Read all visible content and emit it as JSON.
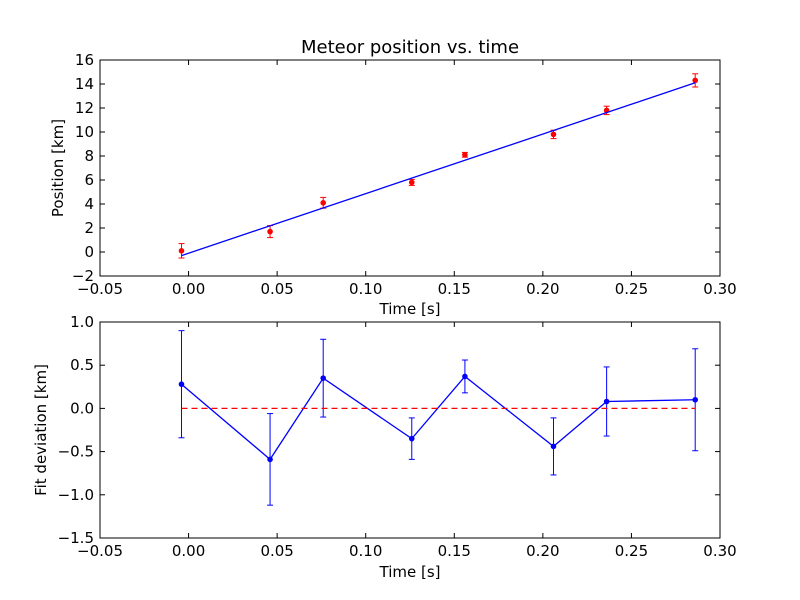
{
  "chart_data": [
    {
      "type": "scatter",
      "title": "Meteor position vs. time",
      "xlabel": "Time [s]",
      "ylabel": "Position [km]",
      "xlim": [
        -0.05,
        0.3
      ],
      "ylim": [
        -2,
        16
      ],
      "xticks": [
        "−0.05",
        "0.00",
        "0.05",
        "0.10",
        "0.15",
        "0.20",
        "0.25",
        "0.30"
      ],
      "xtick_values": [
        -0.05,
        0.0,
        0.05,
        0.1,
        0.15,
        0.2,
        0.25,
        0.3
      ],
      "yticks": [
        "−2",
        "0",
        "2",
        "4",
        "6",
        "8",
        "10",
        "12",
        "14",
        "16"
      ],
      "ytick_values": [
        -2,
        0,
        2,
        4,
        6,
        8,
        10,
        12,
        14,
        16
      ],
      "grid": false,
      "series": [
        {
          "kind": "errorbar",
          "color": "#ff0000",
          "x": [
            -0.004,
            0.046,
            0.076,
            0.126,
            0.156,
            0.206,
            0.236,
            0.286
          ],
          "y": [
            0.1,
            1.7,
            4.1,
            5.8,
            8.1,
            9.8,
            11.8,
            14.3
          ],
          "yerr": [
            0.6,
            0.5,
            0.45,
            0.25,
            0.2,
            0.35,
            0.35,
            0.55
          ]
        },
        {
          "kind": "line",
          "color": "#0000ff",
          "x": [
            -0.004,
            0.286
          ],
          "y": [
            -0.3,
            14.1
          ]
        }
      ]
    },
    {
      "type": "line",
      "title": "",
      "xlabel": "Time [s]",
      "ylabel": "Fit deviation [km]",
      "xlim": [
        -0.05,
        0.3
      ],
      "ylim": [
        -1.5,
        1.0
      ],
      "xticks": [
        "−0.05",
        "0.00",
        "0.05",
        "0.10",
        "0.15",
        "0.20",
        "0.25",
        "0.30"
      ],
      "xtick_values": [
        -0.05,
        0.0,
        0.05,
        0.1,
        0.15,
        0.2,
        0.25,
        0.3
      ],
      "yticks": [
        "−1.5",
        "−1.0",
        "−0.5",
        "0.0",
        "0.5",
        "1.0"
      ],
      "ytick_values": [
        -1.5,
        -1.0,
        -0.5,
        0.0,
        0.5,
        1.0
      ],
      "grid": false,
      "series": [
        {
          "kind": "errorbar-line",
          "color": "#0000ff",
          "x": [
            -0.004,
            0.046,
            0.076,
            0.126,
            0.156,
            0.206,
            0.236,
            0.286
          ],
          "y": [
            0.28,
            -0.59,
            0.35,
            -0.35,
            0.37,
            -0.44,
            0.08,
            0.1
          ],
          "yerr": [
            0.62,
            0.53,
            0.45,
            0.24,
            0.19,
            0.33,
            0.4,
            0.59
          ]
        },
        {
          "kind": "dashed-line",
          "color": "#ff0000",
          "x": [
            -0.004,
            0.286
          ],
          "y": [
            0.0,
            0.0
          ]
        }
      ]
    }
  ]
}
